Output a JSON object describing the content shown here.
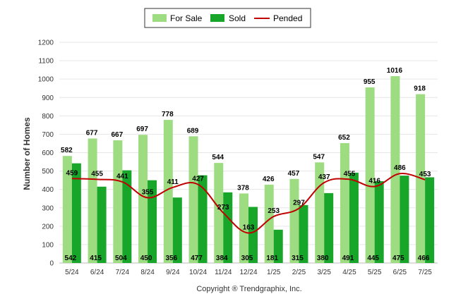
{
  "chart_data": {
    "type": "bar",
    "categories": [
      "5/24",
      "6/24",
      "7/24",
      "8/24",
      "9/24",
      "10/24",
      "11/24",
      "12/24",
      "1/25",
      "2/25",
      "3/25",
      "4/25",
      "5/25",
      "6/25",
      "7/25"
    ],
    "series": [
      {
        "name": "For Sale",
        "type": "bar",
        "color": "#9edc82",
        "values": [
          582,
          677,
          667,
          697,
          778,
          689,
          544,
          378,
          426,
          457,
          547,
          652,
          955,
          1016,
          918
        ]
      },
      {
        "name": "Sold",
        "type": "bar",
        "color": "#17a62a",
        "values": [
          542,
          415,
          504,
          450,
          356,
          477,
          384,
          305,
          181,
          315,
          380,
          491,
          445,
          475,
          466
        ]
      },
      {
        "name": "Pended",
        "type": "line",
        "color": "#c00000",
        "values": [
          459,
          455,
          441,
          355,
          411,
          427,
          273,
          163,
          253,
          297,
          437,
          455,
          416,
          486,
          453
        ]
      }
    ],
    "ylabel": "Number of Homes",
    "ylim": [
      0,
      1200
    ],
    "yticks": [
      0,
      100,
      200,
      300,
      400,
      500,
      600,
      700,
      800,
      900,
      1000,
      1100,
      1200
    ],
    "grid": true,
    "legend_position": "top-center"
  },
  "footer": {
    "copyright": "Copyright ® Trendgraphix, Inc."
  }
}
